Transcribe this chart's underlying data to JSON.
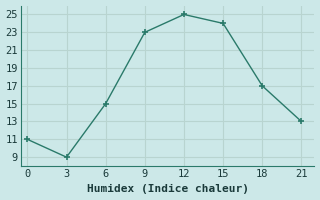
{
  "x": [
    0,
    3,
    6,
    9,
    12,
    15,
    18,
    21
  ],
  "y": [
    11,
    9,
    15,
    23,
    25,
    24,
    17,
    13
  ],
  "xlabel": "Humidex (Indice chaleur)",
  "xlim": [
    -0.5,
    22
  ],
  "ylim": [
    8,
    26
  ],
  "xticks": [
    0,
    3,
    6,
    9,
    12,
    15,
    18,
    21
  ],
  "yticks": [
    9,
    11,
    13,
    15,
    17,
    19,
    21,
    23,
    25
  ],
  "line_color": "#2a7a6a",
  "marker_color": "#2a7a6a",
  "bg_color": "#cce8e8",
  "grid_color": "#b8d4d0",
  "spine_color": "#2a7a6a",
  "font_color": "#1a3a3a",
  "xlabel_fontsize": 8,
  "tick_fontsize": 7.5
}
